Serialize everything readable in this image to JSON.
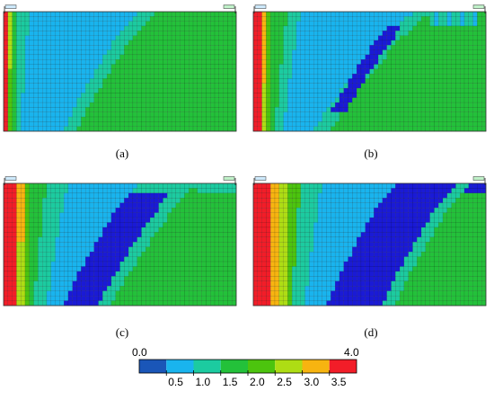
{
  "figure": {
    "panels": [
      {
        "id": "a",
        "caption": "(a)"
      },
      {
        "id": "b",
        "caption": "(b)"
      },
      {
        "id": "c",
        "caption": "(c)"
      },
      {
        "id": "d",
        "caption": "(d)"
      }
    ],
    "colorbar": {
      "min_label": "0.0",
      "max_label": "4.0",
      "tick_labels": [
        "0.5",
        "1.0",
        "1.5",
        "2.0",
        "2.5",
        "3.0",
        "3.5"
      ],
      "colors": [
        "#1a56b8",
        "#19b4ee",
        "#1ccba0",
        "#23c13a",
        "#4cc40e",
        "#aedd14",
        "#f7b410",
        "#f21d28"
      ]
    }
  },
  "chart_data": [
    {
      "type": "heatmap",
      "panel": "a",
      "grid": {
        "rows": 25,
        "cols": 54
      },
      "value_range": [
        0.0,
        4.0
      ],
      "zones_by_row_start": {
        "red_cols": 1,
        "yellow_to": 2,
        "tealL_to": 4,
        "lightteal_to": [
          8,
          4
        ],
        "blue_to": [
          31,
          7
        ],
        "teal_to": [
          35,
          10
        ],
        "rest": "green"
      }
    },
    {
      "type": "heatmap",
      "panel": "b",
      "grid": {
        "rows": 25,
        "cols": 54
      },
      "value_range": [
        0.0,
        4.0
      ],
      "dark_blue_band": true
    },
    {
      "type": "heatmap",
      "panel": "c",
      "grid": {
        "rows": 25,
        "cols": 54
      },
      "value_range": [
        0.0,
        4.0
      ],
      "dark_blue_band": true
    },
    {
      "type": "heatmap",
      "panel": "d",
      "grid": {
        "rows": 25,
        "cols": 54
      },
      "value_range": [
        0.0,
        4.0
      ],
      "dark_blue_band": true
    }
  ]
}
